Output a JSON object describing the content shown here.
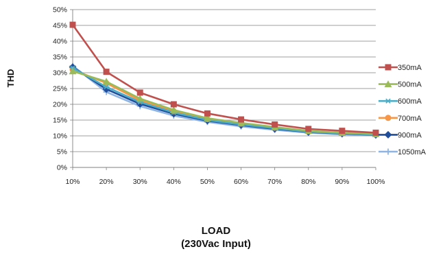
{
  "chart_data": {
    "type": "line",
    "title": "",
    "xlabel": "LOAD",
    "xlabel_sub": "(230Vac Input)",
    "ylabel": "THD",
    "ylim": [
      0,
      50
    ],
    "yticks": [
      "0%",
      "5%",
      "10%",
      "15%",
      "20%",
      "25%",
      "30%",
      "35%",
      "40%",
      "45%",
      "50%"
    ],
    "categories": [
      "10%",
      "20%",
      "30%",
      "40%",
      "50%",
      "60%",
      "70%",
      "80%",
      "90%",
      "100%"
    ],
    "grid": "horizontal",
    "legend_position": "right",
    "series": [
      {
        "name": "350mA",
        "color": "#c0504d",
        "marker": "square",
        "values": [
          45.2,
          30.3,
          23.7,
          20.0,
          17.1,
          15.2,
          13.6,
          12.2,
          11.6,
          11.0
        ]
      },
      {
        "name": "500mA",
        "color": "#9bbb59",
        "marker": "triangle",
        "values": [
          30.5,
          27.2,
          21.8,
          18.2,
          15.6,
          14.1,
          12.8,
          11.6,
          11.0,
          10.6
        ]
      },
      {
        "name": "600mA",
        "color": "#4bacc6",
        "marker": "star",
        "values": [
          31.5,
          25.5,
          20.7,
          17.4,
          15.0,
          13.6,
          12.4,
          11.3,
          10.8,
          10.4
        ]
      },
      {
        "name": "700mA",
        "color": "#f79646",
        "marker": "circle",
        "values": [
          31.0,
          26.7,
          21.2,
          17.8,
          15.3,
          13.9,
          12.6,
          11.5,
          10.9,
          10.5
        ]
      },
      {
        "name": "900mA",
        "color": "#1f4e9c",
        "marker": "diamond",
        "values": [
          31.8,
          24.8,
          20.1,
          17.0,
          14.8,
          13.4,
          12.2,
          11.2,
          10.7,
          10.3
        ]
      },
      {
        "name": "1050mA",
        "color": "#8eb4e3",
        "marker": "plus",
        "values": [
          32.2,
          23.9,
          19.4,
          16.4,
          14.4,
          13.0,
          11.9,
          11.0,
          10.5,
          10.2
        ]
      }
    ]
  }
}
